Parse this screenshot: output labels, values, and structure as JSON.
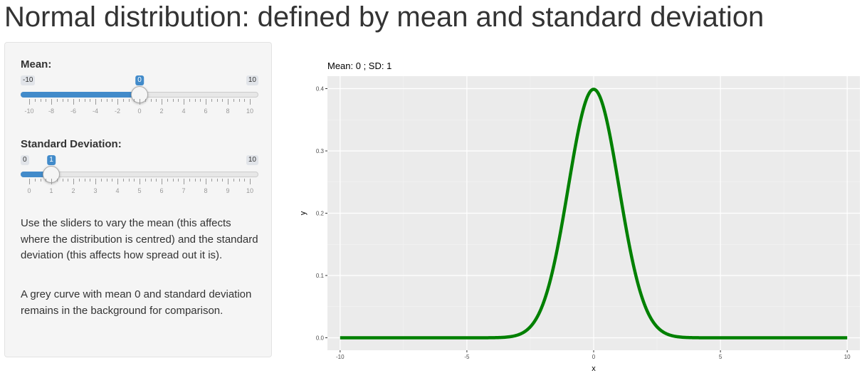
{
  "page": {
    "title": "Normal distribution: defined by mean and standard deviation"
  },
  "sidebar": {
    "mean_slider": {
      "label": "Mean:",
      "min": -10,
      "max": 10,
      "value": 0,
      "min_text": "-10",
      "max_text": "10",
      "value_text": "0",
      "major_ticks": [
        "-10",
        "-8",
        "-6",
        "-4",
        "-2",
        "0",
        "2",
        "4",
        "6",
        "8",
        "10"
      ]
    },
    "sd_slider": {
      "label": "Standard Deviation:",
      "min": 0,
      "max": 10,
      "value": 1,
      "min_text": "0",
      "max_text": "10",
      "value_text": "1",
      "major_ticks": [
        "0",
        "1",
        "2",
        "3",
        "4",
        "5",
        "6",
        "7",
        "8",
        "9",
        "10"
      ]
    },
    "help_text_1": "Use the sliders to vary the mean (this affects where the distribution is centred) and the standard deviation (this affects how spread out it is).",
    "help_text_2": "A grey curve with mean 0 and standard deviation remains in the background for comparison."
  },
  "colors": {
    "accent": "#428bca",
    "curve": "#008000",
    "panel_bg": "#ebebeb"
  },
  "chart_data": {
    "type": "line",
    "title": "Mean:  0 ; SD:  1",
    "xlabel": "x",
    "ylabel": "y",
    "xlim": [
      -10.5,
      10.5
    ],
    "ylim": [
      -0.02,
      0.42
    ],
    "xticks": [
      -10,
      -5,
      0,
      5,
      10
    ],
    "xtick_labels": [
      "-10",
      "-5",
      "0",
      "5",
      "10"
    ],
    "yticks": [
      0,
      0.1,
      0.2,
      0.3,
      0.4
    ],
    "ytick_labels": [
      "0.0",
      "0.1",
      "0.2",
      "0.3",
      "0.4"
    ],
    "grid": true,
    "series": [
      {
        "color": "#008000",
        "mean": 0,
        "sd": 1,
        "x": [
          -10,
          -5,
          -4,
          -3.5,
          -3,
          -2.5,
          -2,
          -1.75,
          -1.5,
          -1.25,
          -1,
          -0.75,
          -0.5,
          -0.25,
          0,
          0.25,
          0.5,
          0.75,
          1,
          1.25,
          1.5,
          1.75,
          2,
          2.5,
          3,
          3.5,
          4,
          5,
          10
        ],
        "y": [
          0,
          1.5e-06,
          0.000134,
          0.000873,
          0.00443,
          0.0175,
          0.054,
          0.0863,
          0.1295,
          0.1826,
          0.242,
          0.3011,
          0.3521,
          0.3867,
          0.3989,
          0.3867,
          0.3521,
          0.3011,
          0.242,
          0.1826,
          0.1295,
          0.0863,
          0.054,
          0.0175,
          0.00443,
          0.000873,
          0.000134,
          1.5e-06,
          0
        ]
      }
    ]
  }
}
